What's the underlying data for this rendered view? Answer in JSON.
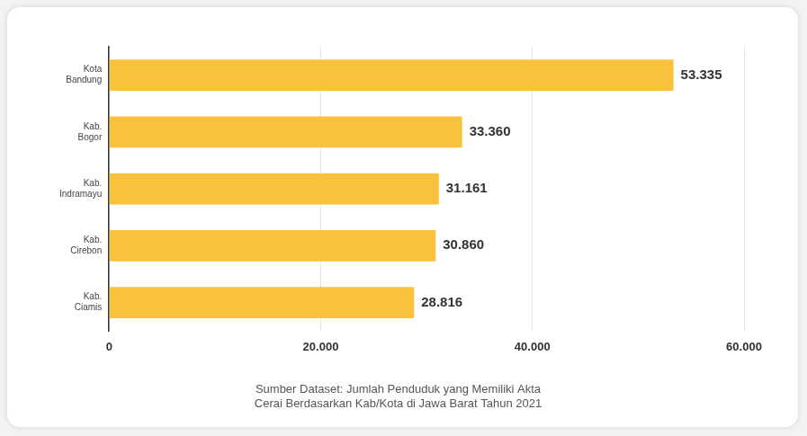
{
  "chart_data": {
    "type": "bar",
    "orientation": "horizontal",
    "subtitle": "Sumber Dataset: Jumlah Penduduk yang Memiliki Akta Cerai Berdasarkan Kab/Kota di Jawa Barat Tahun 2021",
    "categories": [
      "Kota Bandung",
      "Kab. Bogor",
      "Kab. Indramayu",
      "Kab. Cirebon",
      "Kab. Ciamis"
    ],
    "values": [
      53335,
      33360,
      31161,
      30860,
      28816
    ],
    "value_labels": [
      "53.335",
      "33.360",
      "31.161",
      "30.860",
      "28.816"
    ],
    "color": "#f9c23c",
    "xlim": [
      0,
      60000
    ],
    "xticks": [
      0,
      {
        "value": 20000,
        "label": "20.000"
      },
      {
        "value": 40000,
        "label": "40.000"
      },
      {
        "value": 60000,
        "label": "60.000"
      }
    ],
    "grid": true,
    "data_labels": true
  }
}
